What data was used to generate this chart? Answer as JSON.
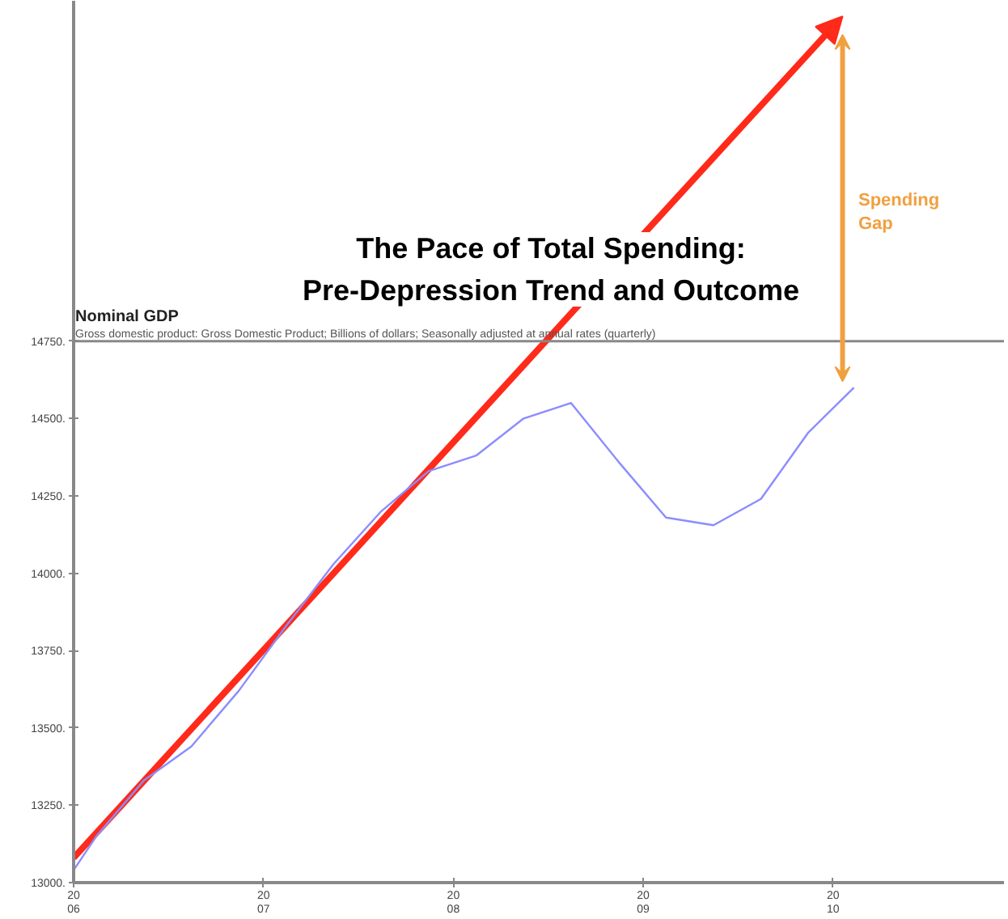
{
  "chart_data": {
    "type": "line",
    "title": "The Pace of Total Spending:\nPre-Depression Trend and Outcome",
    "subtitle": "Nominal GDP",
    "annotations": [
      "Gross domestic product: Gross Domestic Product; Billions of dollars; Seasonally adjusted at annual rates (quarterly)",
      "Spending Gap"
    ],
    "series": [
      {
        "color": "#8c8cff",
        "x": [
          2006.0,
          2006.12,
          2006.37,
          2006.62,
          2006.87,
          2007.12,
          2007.37,
          2007.62,
          2007.87,
          2008.12,
          2008.37,
          2008.62,
          2008.87,
          2009.12,
          2009.37,
          2009.62,
          2009.87,
          2010.11
        ],
        "values": [
          13040,
          13150,
          13330,
          13440,
          13620,
          13830,
          14030,
          14200,
          14330,
          14380,
          14500,
          14550,
          14360,
          14180,
          14155,
          14240,
          14455,
          14600
        ]
      }
    ],
    "xlim": [
      2006.0,
      2010.9
    ],
    "ylim": [
      13000,
      15850
    ],
    "xticks": [
      2006,
      2007,
      2008,
      2009,
      2010
    ],
    "yticks": [
      {
        "value": 13000,
        "label": "13000."
      },
      {
        "value": 13250,
        "label": "13250."
      },
      {
        "value": 13500,
        "label": "13500."
      },
      {
        "value": 13750,
        "label": "13750."
      },
      {
        "value": 14000,
        "label": "14000."
      },
      {
        "value": 14250,
        "label": "14250."
      },
      {
        "value": 14500,
        "label": "14500."
      },
      {
        "value": 14750,
        "label": "14750."
      }
    ],
    "ref_lines": [
      {
        "axis": "y",
        "value": 14750,
        "color": "#888888"
      }
    ],
    "grid": false
  }
}
